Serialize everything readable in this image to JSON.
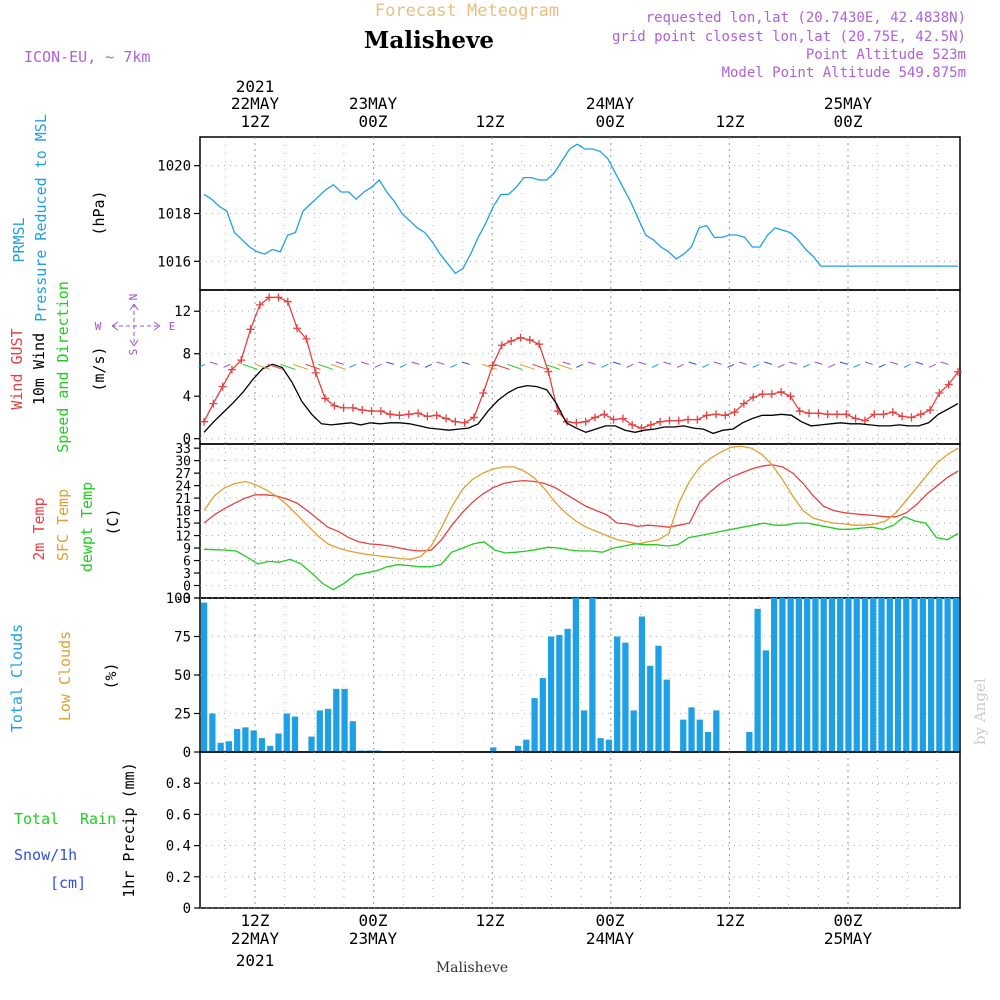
{
  "header": {
    "top_title": "Forecast Meteogram",
    "station": "Malisheve",
    "model": "ICON-EU, ~ 7km",
    "requested": "requested lon,lat (20.7430E, 42.4838N)",
    "gridpoint": "grid point closest lon,lat (20.75E, 42.5N)",
    "point_alt": "Point Altitude 523m",
    "model_alt": "Model Point Altitude 549.875m",
    "footer_station": "Malisheve",
    "credit": "by Angel"
  },
  "time_axis": {
    "top_ticks": [
      {
        "l1": "2021",
        "l2": "22MAY",
        "l3": "12Z",
        "h": 12
      },
      {
        "l1": "",
        "l2": "23MAY",
        "l3": "00Z",
        "h": 24
      },
      {
        "l1": "",
        "l2": "",
        "l3": "12Z",
        "h": 36
      },
      {
        "l1": "",
        "l2": "24MAY",
        "l3": "00Z",
        "h": 48
      },
      {
        "l1": "",
        "l2": "",
        "l3": "12Z",
        "h": 60
      },
      {
        "l1": "",
        "l2": "25MAY",
        "l3": "00Z",
        "h": 72
      }
    ],
    "bottom_ticks": [
      {
        "l1": "12Z",
        "l2": "22MAY",
        "l3": "2021",
        "h": 12
      },
      {
        "l1": "00Z",
        "l2": "23MAY",
        "l3": "",
        "h": 24
      },
      {
        "l1": "12Z",
        "l2": "",
        "l3": "",
        "h": 36
      },
      {
        "l1": "00Z",
        "l2": "24MAY",
        "l3": "",
        "h": 48
      },
      {
        "l1": "12Z",
        "l2": "",
        "l3": "",
        "h": 60
      },
      {
        "l1": "00Z",
        "l2": "25MAY",
        "l3": "",
        "h": 72
      }
    ]
  },
  "labels": {
    "p1": {
      "a": "PRMSL",
      "b": "Pressure Reduced to MSL",
      "unit": "(hPa)"
    },
    "p2": {
      "a": "Wind GUST",
      "b": "10m Wind",
      "c": "Speed and Direction",
      "unit": "(m/s)"
    },
    "compass": {
      "n": "N",
      "s": "S",
      "w": "W",
      "e": "E"
    },
    "p3": {
      "a": "2m Temp",
      "b": "SFC Temp",
      "c": "dewpt Temp",
      "unit": "(C)"
    },
    "p4": {
      "a": "Total Clouds",
      "b": "Low Clouds",
      "unit": "(%)"
    },
    "p5": {
      "a": "Total",
      "b": "Rain",
      "c": "Snow/1h",
      "d": "[cm]",
      "unit": "1hr Precip (mm)"
    }
  },
  "colors": {
    "pressure": "#1ea0e6",
    "gust": "#e84040",
    "wind": "#000000",
    "temp2m": "#e84040",
    "sfc": "#e0a030",
    "dewpt": "#22cc22",
    "clouds": "#1ea0e6",
    "grid": "#999999",
    "purple": "#a050d0",
    "green": "#22cc22",
    "blue": "#3050e0",
    "orange": "#e8b060"
  },
  "chart_data": [
    {
      "type": "line",
      "name": "pressure",
      "ylim": [
        1014.8,
        1021.2
      ],
      "yticks": [
        1016,
        1018,
        1020
      ],
      "series": [
        {
          "name": "PRMSL",
          "x": [
            0,
            1,
            2,
            3,
            4,
            5,
            6,
            7,
            8,
            9,
            10,
            11,
            12,
            13,
            14,
            15,
            16,
            17,
            18,
            19,
            20,
            21,
            22,
            23,
            24,
            25,
            26,
            27,
            28,
            29,
            30,
            31,
            32,
            33,
            34,
            35,
            36,
            37,
            38,
            39,
            40,
            41,
            42,
            43,
            44,
            45,
            46,
            47,
            48,
            49,
            50,
            51,
            52,
            53,
            54,
            55,
            56,
            57,
            58,
            59,
            60,
            61,
            62,
            63,
            64,
            65,
            66,
            67,
            68,
            69,
            70,
            71,
            72,
            73,
            74,
            75,
            76,
            77,
            78,
            79,
            80,
            81,
            82,
            83,
            84,
            85,
            86,
            87,
            88,
            89,
            90,
            91,
            92,
            93,
            94,
            95,
            96,
            97,
            98,
            99
          ],
          "values": [
            1018.8,
            1018.6,
            1018.3,
            1018.1,
            1017.2,
            1016.9,
            1016.6,
            1016.4,
            1016.3,
            1016.5,
            1016.4,
            1017.1,
            1017.2,
            1018.1,
            1018.4,
            1018.7,
            1019.0,
            1019.2,
            1018.9,
            1018.9,
            1018.6,
            1018.9,
            1019.1,
            1019.4,
            1018.9,
            1018.5,
            1018.0,
            1017.7,
            1017.4,
            1017.2,
            1016.8,
            1016.3,
            1015.9,
            1015.5,
            1015.7,
            1016.3,
            1017.0,
            1017.6,
            1018.3,
            1018.8,
            1018.8,
            1019.1,
            1019.5,
            1019.5,
            1019.4,
            1019.4,
            1019.7,
            1020.2,
            1020.7,
            1020.9,
            1020.7,
            1020.7,
            1020.6,
            1020.3,
            1019.7,
            1019.1,
            1018.5,
            1017.8,
            1017.1,
            1016.9,
            1016.6,
            1016.4,
            1016.1,
            1016.3,
            1016.6,
            1017.4,
            1017.5,
            1017.0,
            1017.0,
            1017.1,
            1017.1,
            1017.0,
            1016.6,
            1016.6,
            1017.1,
            1017.4,
            1017.3,
            1017.2,
            1016.9,
            1016.5,
            1016.2,
            1015.8,
            1015.8,
            1015.8,
            1015.8,
            1015.8,
            1015.8,
            1015.8,
            1015.8,
            1015.8,
            1015.8,
            1015.8,
            1015.8,
            1015.8,
            1015.8,
            1015.8,
            1015.8,
            1015.8,
            1015.8,
            1015.8
          ]
        }
      ]
    },
    {
      "type": "line",
      "name": "wind",
      "ylim": [
        -0.5,
        14.0
      ],
      "yticks": [
        0,
        4,
        8,
        12
      ],
      "series": [
        {
          "name": "Wind GUST",
          "values": [
            1.6,
            3.3,
            4.9,
            6.5,
            7.4,
            10.3,
            12.6,
            13.3,
            13.3,
            12.9,
            10.4,
            9.4,
            6.2,
            3.8,
            3.1,
            2.9,
            2.9,
            2.7,
            2.6,
            2.6,
            2.3,
            2.2,
            2.3,
            2.4,
            2.1,
            2.2,
            1.9,
            1.6,
            1.5,
            2.0,
            4.3,
            6.9,
            8.8,
            9.2,
            9.5,
            9.3,
            8.9,
            6.3,
            2.6,
            1.6,
            1.5,
            1.6,
            2.0,
            2.3,
            1.8,
            1.9,
            1.3,
            1.0,
            1.3,
            1.6,
            1.7,
            1.7,
            1.8,
            1.8,
            2.2,
            2.3,
            2.2,
            2.5,
            3.3,
            3.9,
            4.2,
            4.2,
            4.4,
            4.0,
            2.6,
            2.4,
            2.4,
            2.3,
            2.3,
            2.3,
            1.9,
            1.7,
            2.3,
            2.3,
            2.5,
            2.1,
            2.0,
            2.3,
            2.7,
            4.3,
            5.1,
            6.3
          ]
        },
        {
          "name": "10m Wind",
          "values": [
            0.6,
            1.6,
            2.5,
            3.4,
            4.4,
            5.6,
            6.6,
            7.0,
            6.7,
            5.3,
            3.5,
            2.3,
            1.4,
            1.3,
            1.4,
            1.5,
            1.3,
            1.5,
            1.4,
            1.5,
            1.5,
            1.4,
            1.2,
            1.0,
            0.9,
            0.8,
            0.9,
            1.0,
            1.4,
            2.6,
            3.6,
            4.3,
            4.8,
            5.0,
            4.9,
            4.6,
            3.3,
            1.5,
            1.0,
            0.6,
            0.9,
            1.2,
            1.2,
            0.8,
            0.6,
            0.8,
            0.9,
            1.1,
            1.1,
            1.2,
            1.0,
            0.9,
            0.5,
            0.8,
            0.9,
            1.5,
            1.9,
            2.2,
            2.2,
            2.3,
            2.2,
            1.6,
            1.2,
            1.3,
            1.4,
            1.5,
            1.4,
            1.4,
            1.3,
            1.2,
            1.2,
            1.3,
            1.2,
            1.2,
            1.5,
            2.3,
            2.8,
            3.3
          ]
        }
      ]
    },
    {
      "type": "line",
      "name": "temperature",
      "ylim": [
        -3,
        34
      ],
      "yticks": [
        -3,
        0,
        3,
        6,
        9,
        12,
        15,
        18,
        21,
        24,
        27,
        30,
        33
      ],
      "series": [
        {
          "name": "2m Temp",
          "values": [
            15.0,
            17.0,
            18.5,
            19.8,
            21.0,
            21.8,
            21.8,
            21.5,
            20.8,
            19.8,
            18.0,
            16.0,
            14.0,
            13.0,
            11.5,
            10.5,
            10.0,
            9.8,
            9.5,
            9.0,
            8.5,
            8.3,
            8.5,
            11.0,
            14.5,
            17.5,
            20.0,
            22.0,
            23.5,
            24.5,
            25.0,
            25.2,
            25.0,
            24.5,
            23.5,
            22.0,
            20.5,
            19.0,
            18.0,
            17.0,
            15.0,
            14.8,
            14.2,
            14.5,
            14.3,
            14.0,
            14.5,
            15.0,
            20.0,
            22.5,
            24.5,
            26.0,
            27.0,
            28.0,
            28.7,
            29.0,
            28.5,
            27.0,
            24.5,
            21.5,
            19.0,
            18.0,
            17.5,
            17.2,
            17.0,
            16.8,
            16.5,
            16.5,
            17.5,
            19.5,
            22.0,
            24.0,
            26.0,
            27.5
          ]
        },
        {
          "name": "SFC Temp",
          "values": [
            18.0,
            21.5,
            23.5,
            24.5,
            25.0,
            24.2,
            23.0,
            21.5,
            19.5,
            17.0,
            14.5,
            12.0,
            10.0,
            9.0,
            8.3,
            7.8,
            7.4,
            7.1,
            6.8,
            6.5,
            6.3,
            7.0,
            9.5,
            14.0,
            19.0,
            23.0,
            25.5,
            27.0,
            28.0,
            28.5,
            28.5,
            27.5,
            25.8,
            23.2,
            20.0,
            17.5,
            15.5,
            14.0,
            13.0,
            12.0,
            11.0,
            10.5,
            10.0,
            10.5,
            11.0,
            12.5,
            20.0,
            25.0,
            28.5,
            30.5,
            32.0,
            33.2,
            33.5,
            33.0,
            31.5,
            29.0,
            25.5,
            21.5,
            18.0,
            16.2,
            15.5,
            15.0,
            14.8,
            14.5,
            14.5,
            14.8,
            15.5,
            17.5,
            20.5,
            23.5,
            26.5,
            29.5,
            31.5,
            33.0
          ]
        },
        {
          "name": "dewpt Temp",
          "values": [
            8.7,
            8.6,
            8.5,
            8.3,
            6.8,
            5.2,
            5.8,
            5.6,
            6.3,
            5.2,
            3.0,
            0.5,
            -1.0,
            0.5,
            2.5,
            3.0,
            3.5,
            4.5,
            5.0,
            4.8,
            4.5,
            4.5,
            5.0,
            8.0,
            9.0,
            10.0,
            10.5,
            8.5,
            7.8,
            8.0,
            8.3,
            8.7,
            9.2,
            9.0,
            8.5,
            8.3,
            8.3,
            8.0,
            9.0,
            9.5,
            10.0,
            9.8,
            9.8,
            9.5,
            9.8,
            11.5,
            12.0,
            12.5,
            13.0,
            13.5,
            14.0,
            14.5,
            15.0,
            14.5,
            14.5,
            15.0,
            15.0,
            14.5,
            14.0,
            13.5,
            13.5,
            13.8,
            14.0,
            13.5,
            14.5,
            16.5,
            15.5,
            15.0,
            11.5,
            11.0,
            12.5
          ]
        }
      ]
    },
    {
      "type": "bar",
      "name": "clouds",
      "ylim": [
        0,
        100
      ],
      "yticks": [
        0,
        25,
        50,
        75,
        100
      ],
      "series": [
        {
          "name": "Total Clouds",
          "values": [
            97,
            25,
            6,
            7,
            15,
            16,
            14,
            9,
            4,
            12,
            25,
            23,
            0,
            10,
            27,
            28,
            41,
            41,
            20,
            1,
            1,
            1,
            0,
            0,
            0,
            0,
            0,
            0,
            0,
            0,
            0,
            0,
            0,
            0,
            0,
            3,
            0,
            0,
            4,
            8,
            35,
            48,
            75,
            76,
            80,
            100,
            27,
            100,
            9,
            8,
            75,
            71,
            27,
            88,
            56,
            69,
            47,
            0,
            21,
            29,
            21,
            13,
            27,
            0,
            0,
            0,
            13,
            93,
            66,
            100,
            100,
            100,
            100,
            100,
            100,
            100,
            100,
            100,
            100,
            100,
            100,
            100,
            100,
            100,
            100,
            100,
            100,
            100,
            100,
            100,
            100,
            100
          ]
        }
      ]
    },
    {
      "type": "bar",
      "name": "precip",
      "ylim": [
        0,
        1.0
      ],
      "yticks": [
        0,
        0.2,
        0.4,
        0.6,
        0.8
      ],
      "series": [
        {
          "name": "1hr Precip",
          "values": []
        }
      ]
    }
  ]
}
